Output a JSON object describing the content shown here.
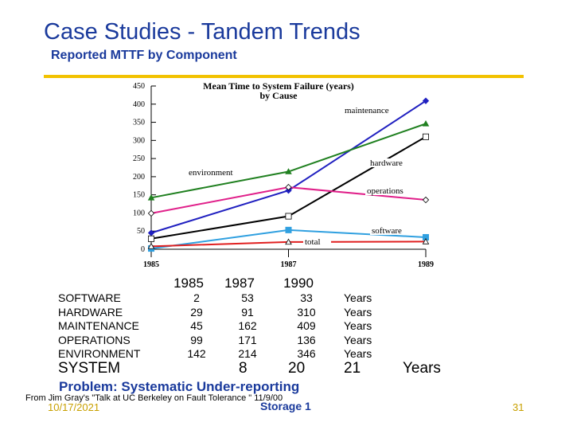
{
  "slide": {
    "title": "Case Studies - Tandem Trends",
    "subtitle": "Reported MTTF by Component",
    "problem": "Problem:  Systematic Under-reporting",
    "source": "From Jim Gray's \"Talk at UC Berkeley on Fault Tolerance \" 11/9/00",
    "date": "10/17/2021",
    "footer": "Storage 1",
    "page": "31"
  },
  "table": {
    "headers": [
      "1985",
      "1987",
      "1990"
    ],
    "rows": [
      {
        "label": "SOFTWARE",
        "values": [
          "2",
          "53",
          "33"
        ],
        "unit": "Years"
      },
      {
        "label": "HARDWARE",
        "values": [
          "29",
          "91",
          "310"
        ],
        "unit": "Years"
      },
      {
        "label": "MAINTENANCE",
        "values": [
          "45",
          "162",
          "409"
        ],
        "unit": "Years"
      },
      {
        "label": "OPERATIONS",
        "values": [
          "99",
          "171",
          "136"
        ],
        "unit": "Years"
      },
      {
        "label": "ENVIRONMENT",
        "values": [
          "142",
          "214",
          "346"
        ],
        "unit": "Years"
      }
    ],
    "system": {
      "label": "SYSTEM",
      "values": [
        "8",
        "20",
        "21"
      ],
      "unit": "Years"
    }
  },
  "chart_data": {
    "type": "line",
    "title": [
      "Mean Time to System Failure (years)",
      "by Cause"
    ],
    "x": [
      1985,
      1987,
      1989
    ],
    "xticks": [
      "1985",
      "1987",
      "1989"
    ],
    "ylim": [
      0,
      450
    ],
    "yticks": [
      "0",
      "50",
      "100",
      "150",
      "200",
      "250",
      "300",
      "350",
      "400",
      "450"
    ],
    "grid": false,
    "series": [
      {
        "name": "maintenance",
        "values": [
          45,
          162,
          409
        ],
        "color": "#2020c0",
        "marker": "diamond-filled"
      },
      {
        "name": "environment",
        "values": [
          142,
          214,
          346
        ],
        "color": "#208020",
        "marker": "triangle-filled"
      },
      {
        "name": "hardware",
        "values": [
          29,
          91,
          310
        ],
        "color": "#000000",
        "marker": "square-open"
      },
      {
        "name": "operations",
        "values": [
          99,
          171,
          136
        ],
        "color": "#e0208a",
        "marker": "diamond-open"
      },
      {
        "name": "software",
        "values": [
          2,
          53,
          33
        ],
        "color": "#30a0e0",
        "marker": "square-filled"
      },
      {
        "name": "total",
        "values": [
          8,
          20,
          21
        ],
        "color": "#e02020",
        "marker": "triangle-open"
      }
    ]
  }
}
